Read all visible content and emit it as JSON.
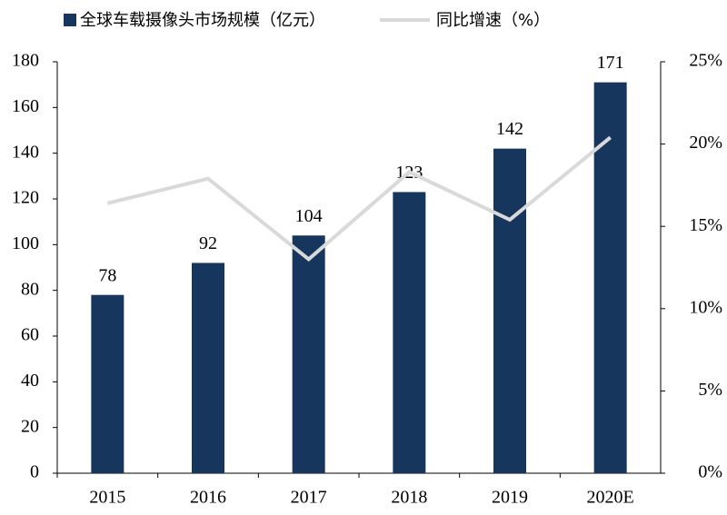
{
  "chart_data": {
    "type": "bar_line",
    "categories": [
      "2015",
      "2016",
      "2017",
      "2018",
      "2019",
      "2020E"
    ],
    "series": [
      {
        "name": "全球车载摄像头市场规模（亿元）",
        "type": "bar",
        "color": "#17365d",
        "values": [
          78,
          92,
          104,
          123,
          142,
          171
        ]
      },
      {
        "name": "同比增速（%）",
        "type": "line",
        "axis": "y2",
        "color": "#d9d9d9",
        "values": [
          16.4,
          17.9,
          13.0,
          18.3,
          15.4,
          20.4
        ]
      }
    ],
    "ylim": [
      0,
      180
    ],
    "yticks": [
      0,
      20,
      40,
      60,
      80,
      100,
      120,
      140,
      160,
      180
    ],
    "y2lim": [
      0,
      25
    ],
    "y2ticks": [
      {
        "value": 0,
        "label": "0%"
      },
      {
        "value": 5,
        "label": "5%"
      },
      {
        "value": 10,
        "label": "10%"
      },
      {
        "value": 15,
        "label": "15%"
      },
      {
        "value": 20,
        "label": "20%"
      },
      {
        "value": 25,
        "label": "25%"
      }
    ],
    "legend": "top",
    "grid": false
  }
}
